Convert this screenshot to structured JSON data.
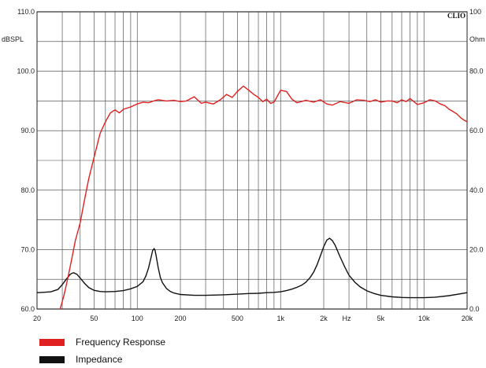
{
  "chart_data": {
    "type": "line",
    "brand": "CLIO",
    "x_scale": "log",
    "xlim": [
      20,
      20000
    ],
    "x_ticks": [
      20,
      50,
      100,
      200,
      500,
      1000,
      2000,
      5000,
      10000,
      20000
    ],
    "x_tick_labels": [
      "20",
      "50",
      "100",
      "200",
      "500",
      "1k",
      "2k",
      "5k",
      "10k",
      "20k"
    ],
    "x_unit": "Hz",
    "ylim": [
      60,
      110
    ],
    "y_ticks": [
      60,
      70,
      80,
      90,
      100,
      110
    ],
    "y_tick_labels": [
      "60.0",
      "70.0",
      "80.0",
      "90.0",
      "100.0",
      "110.0"
    ],
    "ylabel": "dBSPL",
    "y2lim": [
      0,
      100
    ],
    "y2_ticks": [
      0,
      20,
      40,
      60,
      80,
      100
    ],
    "y2_tick_labels": [
      "0.0",
      "20.0",
      "40.0",
      "60.0",
      "80.0",
      "100"
    ],
    "y2label": "Ohm",
    "grid": true,
    "legend_position": "bottom-left",
    "series": [
      {
        "name": "Frequency Response",
        "color": "#e02020",
        "axis": "left",
        "x": [
          29,
          31,
          33,
          35,
          37,
          40,
          43,
          46,
          50,
          55,
          60,
          65,
          70,
          75,
          80,
          90,
          100,
          110,
          120,
          130,
          140,
          160,
          180,
          200,
          220,
          250,
          280,
          300,
          340,
          380,
          420,
          460,
          500,
          550,
          600,
          650,
          700,
          750,
          800,
          850,
          900,
          1000,
          1100,
          1200,
          1300,
          1500,
          1700,
          1900,
          2100,
          2300,
          2600,
          3000,
          3400,
          3800,
          4200,
          4600,
          5000,
          5500,
          6000,
          6500,
          7000,
          7500,
          8000,
          8500,
          9000,
          10000,
          11000,
          12000,
          13000,
          14000,
          15000,
          16000,
          17000,
          18000,
          19000,
          20000
        ],
        "y": [
          60,
          62.5,
          65.5,
          68.5,
          71.5,
          74.5,
          78.5,
          82,
          85.5,
          89.5,
          91.5,
          93,
          93.5,
          93,
          93.6,
          94,
          94.5,
          94.8,
          94.7,
          95,
          95.2,
          95,
          95.1,
          94.9,
          95,
          95.7,
          94.6,
          94.8,
          94.5,
          95.2,
          96.1,
          95.6,
          96.6,
          97.5,
          96.8,
          96.1,
          95.6,
          94.9,
          95.3,
          94.6,
          94.8,
          96.8,
          96.6,
          95.3,
          94.7,
          95.1,
          94.8,
          95.2,
          94.5,
          94.3,
          94.9,
          94.6,
          95.2,
          95.1,
          94.9,
          95.2,
          94.8,
          95,
          95,
          94.7,
          95.2,
          94.9,
          95.4,
          94.9,
          94.4,
          94.7,
          95.2,
          95,
          94.5,
          94.2,
          93.6,
          93.2,
          92.8,
          92.2,
          91.8,
          91.5
        ]
      },
      {
        "name": "Impedance",
        "color": "#111111",
        "axis": "right",
        "x": [
          20,
          22,
          25,
          28,
          30,
          32,
          34,
          35,
          36,
          38,
          40,
          43,
          46,
          50,
          55,
          60,
          70,
          80,
          90,
          100,
          110,
          115,
          120,
          125,
          128,
          131,
          133,
          136,
          140,
          145,
          150,
          160,
          170,
          180,
          200,
          250,
          300,
          400,
          500,
          600,
          700,
          800,
          900,
          1000,
          1100,
          1200,
          1300,
          1400,
          1500,
          1600,
          1700,
          1800,
          1900,
          2000,
          2100,
          2200,
          2300,
          2400,
          2600,
          2800,
          3000,
          3300,
          3600,
          4000,
          4500,
          5000,
          6000,
          7000,
          8000,
          10000,
          12000,
          15000,
          20000
        ],
        "y": [
          5.5,
          5.6,
          5.8,
          6.6,
          8.2,
          10,
          11.6,
          12,
          12.2,
          11.7,
          10.4,
          8.6,
          7.2,
          6.3,
          5.9,
          5.8,
          5.9,
          6.2,
          6.8,
          7.6,
          9.2,
          11.2,
          13.8,
          17.5,
          19.6,
          20.3,
          19.8,
          17.5,
          14,
          10.6,
          8.8,
          6.9,
          5.9,
          5.4,
          4.9,
          4.6,
          4.6,
          4.8,
          5.0,
          5.2,
          5.3,
          5.5,
          5.6,
          5.8,
          6.2,
          6.7,
          7.3,
          8.0,
          9.0,
          10.5,
          12.4,
          15,
          18,
          21,
          23.2,
          23.8,
          23,
          21.5,
          17.6,
          14.2,
          11.4,
          9.0,
          7.4,
          6.1,
          5.2,
          4.6,
          4.1,
          3.9,
          3.8,
          3.8,
          4.0,
          4.5,
          5.5
        ]
      }
    ]
  }
}
